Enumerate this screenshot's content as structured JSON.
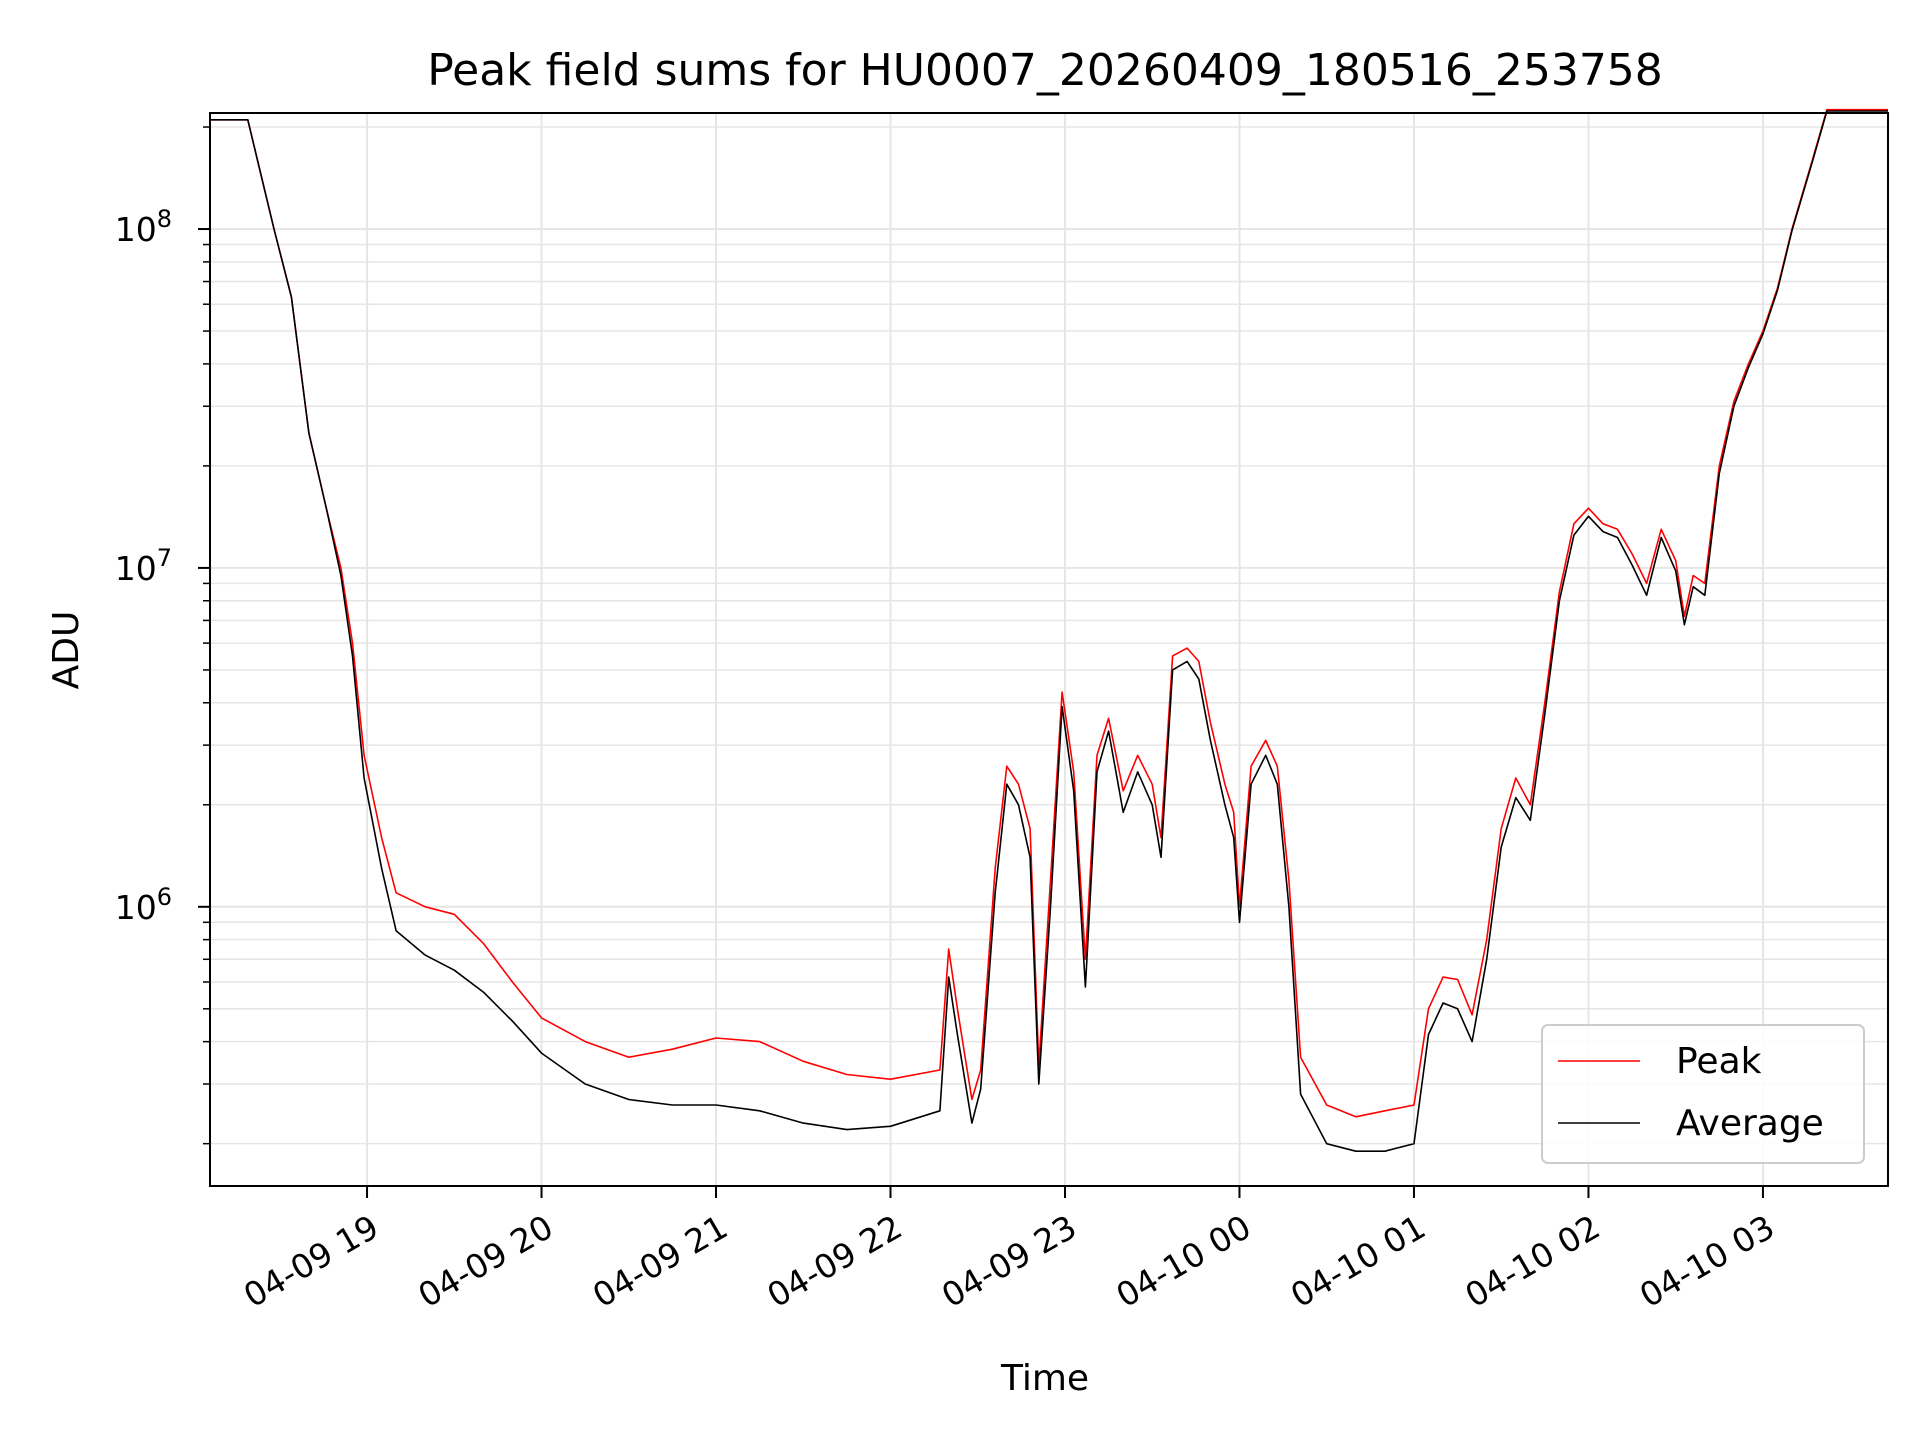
{
  "chart_data": {
    "type": "line",
    "title": "Peak field sums for HU0007_20260409_180516_253758",
    "xlabel": "Time",
    "ylabel": "ADU",
    "x_scale": "time",
    "y_scale": "log",
    "xlim": [
      "2026-04-09 18:06",
      "2026-04-10 03:43"
    ],
    "ylim": [
      150000,
      220000000
    ],
    "grid": true,
    "legend": "lower-right",
    "x_ticks": [
      {
        "time": "2026-04-09 19:00",
        "label": "04-09 19"
      },
      {
        "time": "2026-04-09 20:00",
        "label": "04-09 20"
      },
      {
        "time": "2026-04-09 21:00",
        "label": "04-09 21"
      },
      {
        "time": "2026-04-09 22:00",
        "label": "04-09 22"
      },
      {
        "time": "2026-04-09 23:00",
        "label": "04-09 23"
      },
      {
        "time": "2026-04-10 00:00",
        "label": "04-10 00"
      },
      {
        "time": "2026-04-10 01:00",
        "label": "04-10 01"
      },
      {
        "time": "2026-04-10 02:00",
        "label": "04-10 02"
      },
      {
        "time": "2026-04-10 03:00",
        "label": "04-10 03"
      }
    ],
    "y_ticks": [
      {
        "value": 1000000,
        "base": "10",
        "exp": "6"
      },
      {
        "value": 10000000,
        "base": "10",
        "exp": "7"
      },
      {
        "value": 100000000,
        "base": "10",
        "exp": "8"
      }
    ],
    "series": [
      {
        "name": "Peak",
        "color": "#ff0000",
        "points": [
          [
            "2026-04-09 18:06",
            210000000
          ],
          [
            "2026-04-09 18:19",
            210000000
          ],
          [
            "2026-04-09 18:28",
            100000000
          ],
          [
            "2026-04-09 18:34",
            63000000
          ],
          [
            "2026-04-09 18:40",
            25000000
          ],
          [
            "2026-04-09 18:46",
            15000000
          ],
          [
            "2026-04-09 18:51",
            10000000
          ],
          [
            "2026-04-09 18:55",
            6000000
          ],
          [
            "2026-04-09 18:59",
            2800000
          ],
          [
            "2026-04-09 19:05",
            1600000
          ],
          [
            "2026-04-09 19:10",
            1100000
          ],
          [
            "2026-04-09 19:20",
            1000000
          ],
          [
            "2026-04-09 19:30",
            950000
          ],
          [
            "2026-04-09 19:40",
            780000
          ],
          [
            "2026-04-09 19:50",
            600000
          ],
          [
            "2026-04-09 20:00",
            470000
          ],
          [
            "2026-04-09 20:15",
            400000
          ],
          [
            "2026-04-09 20:30",
            360000
          ],
          [
            "2026-04-09 20:45",
            380000
          ],
          [
            "2026-04-09 21:00",
            410000
          ],
          [
            "2026-04-09 21:15",
            400000
          ],
          [
            "2026-04-09 21:30",
            350000
          ],
          [
            "2026-04-09 21:45",
            320000
          ],
          [
            "2026-04-09 22:00",
            310000
          ],
          [
            "2026-04-09 22:17",
            330000
          ],
          [
            "2026-04-09 22:20",
            750000
          ],
          [
            "2026-04-09 22:23",
            500000
          ],
          [
            "2026-04-09 22:28",
            270000
          ],
          [
            "2026-04-09 22:31",
            330000
          ],
          [
            "2026-04-09 22:36",
            1300000
          ],
          [
            "2026-04-09 22:40",
            2600000
          ],
          [
            "2026-04-09 22:44",
            2300000
          ],
          [
            "2026-04-09 22:48",
            1700000
          ],
          [
            "2026-04-09 22:51",
            340000
          ],
          [
            "2026-04-09 22:55",
            1200000
          ],
          [
            "2026-04-09 22:59",
            4300000
          ],
          [
            "2026-04-09 23:03",
            2500000
          ],
          [
            "2026-04-09 23:07",
            700000
          ],
          [
            "2026-04-09 23:11",
            2800000
          ],
          [
            "2026-04-09 23:15",
            3600000
          ],
          [
            "2026-04-09 23:20",
            2200000
          ],
          [
            "2026-04-09 23:25",
            2800000
          ],
          [
            "2026-04-09 23:30",
            2300000
          ],
          [
            "2026-04-09 23:33",
            1600000
          ],
          [
            "2026-04-09 23:37",
            5500000
          ],
          [
            "2026-04-09 23:42",
            5800000
          ],
          [
            "2026-04-09 23:46",
            5300000
          ],
          [
            "2026-04-09 23:50",
            3500000
          ],
          [
            "2026-04-09 23:55",
            2300000
          ],
          [
            "2026-04-09 23:58",
            1900000
          ],
          [
            "2026-04-10 00:00",
            1000000
          ],
          [
            "2026-04-10 00:04",
            2600000
          ],
          [
            "2026-04-10 00:09",
            3100000
          ],
          [
            "2026-04-10 00:13",
            2600000
          ],
          [
            "2026-04-10 00:17",
            1200000
          ],
          [
            "2026-04-10 00:21",
            360000
          ],
          [
            "2026-04-10 00:30",
            260000
          ],
          [
            "2026-04-10 00:40",
            240000
          ],
          [
            "2026-04-10 00:50",
            250000
          ],
          [
            "2026-04-10 01:00",
            260000
          ],
          [
            "2026-04-10 01:05",
            500000
          ],
          [
            "2026-04-10 01:10",
            620000
          ],
          [
            "2026-04-10 01:15",
            610000
          ],
          [
            "2026-04-10 01:20",
            480000
          ],
          [
            "2026-04-10 01:25",
            800000
          ],
          [
            "2026-04-10 01:30",
            1700000
          ],
          [
            "2026-04-10 01:35",
            2400000
          ],
          [
            "2026-04-10 01:40",
            2000000
          ],
          [
            "2026-04-10 01:45",
            4000000
          ],
          [
            "2026-04-10 01:50",
            8500000
          ],
          [
            "2026-04-10 01:55",
            13500000
          ],
          [
            "2026-04-10 02:00",
            15000000
          ],
          [
            "2026-04-10 02:05",
            13500000
          ],
          [
            "2026-04-10 02:10",
            13000000
          ],
          [
            "2026-04-10 02:15",
            11000000
          ],
          [
            "2026-04-10 02:20",
            9000000
          ],
          [
            "2026-04-10 02:25",
            13000000
          ],
          [
            "2026-04-10 02:30",
            10500000
          ],
          [
            "2026-04-10 02:33",
            7200000
          ],
          [
            "2026-04-10 02:36",
            9500000
          ],
          [
            "2026-04-10 02:40",
            9000000
          ],
          [
            "2026-04-10 02:45",
            20000000
          ],
          [
            "2026-04-10 02:50",
            31000000
          ],
          [
            "2026-04-10 02:55",
            40000000
          ],
          [
            "2026-04-10 03:00",
            50000000
          ],
          [
            "2026-04-10 03:05",
            67000000
          ],
          [
            "2026-04-10 03:10",
            100000000
          ],
          [
            "2026-04-10 03:17",
            160000000
          ],
          [
            "2026-04-10 03:22",
            225000000
          ],
          [
            "2026-04-10 03:43",
            225000000
          ]
        ]
      },
      {
        "name": "Average",
        "color": "#000000",
        "points": [
          [
            "2026-04-09 18:06",
            210000000
          ],
          [
            "2026-04-09 18:19",
            210000000
          ],
          [
            "2026-04-09 18:28",
            100000000
          ],
          [
            "2026-04-09 18:34",
            63000000
          ],
          [
            "2026-04-09 18:40",
            25000000
          ],
          [
            "2026-04-09 18:46",
            15000000
          ],
          [
            "2026-04-09 18:51",
            9500000
          ],
          [
            "2026-04-09 18:55",
            5500000
          ],
          [
            "2026-04-09 18:59",
            2400000
          ],
          [
            "2026-04-09 19:05",
            1300000
          ],
          [
            "2026-04-09 19:10",
            850000
          ],
          [
            "2026-04-09 19:20",
            720000
          ],
          [
            "2026-04-09 19:30",
            650000
          ],
          [
            "2026-04-09 19:40",
            560000
          ],
          [
            "2026-04-09 19:50",
            460000
          ],
          [
            "2026-04-09 20:00",
            370000
          ],
          [
            "2026-04-09 20:15",
            300000
          ],
          [
            "2026-04-09 20:30",
            270000
          ],
          [
            "2026-04-09 20:45",
            260000
          ],
          [
            "2026-04-09 21:00",
            260000
          ],
          [
            "2026-04-09 21:15",
            250000
          ],
          [
            "2026-04-09 21:30",
            230000
          ],
          [
            "2026-04-09 21:45",
            220000
          ],
          [
            "2026-04-09 22:00",
            225000
          ],
          [
            "2026-04-09 22:17",
            250000
          ],
          [
            "2026-04-09 22:20",
            620000
          ],
          [
            "2026-04-09 22:23",
            420000
          ],
          [
            "2026-04-09 22:28",
            230000
          ],
          [
            "2026-04-09 22:31",
            290000
          ],
          [
            "2026-04-09 22:36",
            1100000
          ],
          [
            "2026-04-09 22:40",
            2300000
          ],
          [
            "2026-04-09 22:44",
            2000000
          ],
          [
            "2026-04-09 22:48",
            1400000
          ],
          [
            "2026-04-09 22:51",
            300000
          ],
          [
            "2026-04-09 22:55",
            1000000
          ],
          [
            "2026-04-09 22:59",
            3900000
          ],
          [
            "2026-04-09 23:03",
            2200000
          ],
          [
            "2026-04-09 23:07",
            580000
          ],
          [
            "2026-04-09 23:11",
            2500000
          ],
          [
            "2026-04-09 23:15",
            3300000
          ],
          [
            "2026-04-09 23:20",
            1900000
          ],
          [
            "2026-04-09 23:25",
            2500000
          ],
          [
            "2026-04-09 23:30",
            2000000
          ],
          [
            "2026-04-09 23:33",
            1400000
          ],
          [
            "2026-04-09 23:37",
            5000000
          ],
          [
            "2026-04-09 23:42",
            5300000
          ],
          [
            "2026-04-09 23:46",
            4700000
          ],
          [
            "2026-04-09 23:50",
            3100000
          ],
          [
            "2026-04-09 23:55",
            2000000
          ],
          [
            "2026-04-09 23:58",
            1600000
          ],
          [
            "2026-04-10 00:00",
            900000
          ],
          [
            "2026-04-10 00:04",
            2300000
          ],
          [
            "2026-04-10 00:09",
            2800000
          ],
          [
            "2026-04-10 00:13",
            2300000
          ],
          [
            "2026-04-10 00:17",
            1000000
          ],
          [
            "2026-04-10 00:21",
            280000
          ],
          [
            "2026-04-10 00:30",
            200000
          ],
          [
            "2026-04-10 00:40",
            190000
          ],
          [
            "2026-04-10 00:50",
            190000
          ],
          [
            "2026-04-10 01:00",
            200000
          ],
          [
            "2026-04-10 01:05",
            420000
          ],
          [
            "2026-04-10 01:10",
            520000
          ],
          [
            "2026-04-10 01:15",
            500000
          ],
          [
            "2026-04-10 01:20",
            400000
          ],
          [
            "2026-04-10 01:25",
            700000
          ],
          [
            "2026-04-10 01:30",
            1500000
          ],
          [
            "2026-04-10 01:35",
            2100000
          ],
          [
            "2026-04-10 01:40",
            1800000
          ],
          [
            "2026-04-10 01:45",
            3700000
          ],
          [
            "2026-04-10 01:50",
            8000000
          ],
          [
            "2026-04-10 01:55",
            12500000
          ],
          [
            "2026-04-10 02:00",
            14200000
          ],
          [
            "2026-04-10 02:05",
            12800000
          ],
          [
            "2026-04-10 02:10",
            12300000
          ],
          [
            "2026-04-10 02:15",
            10200000
          ],
          [
            "2026-04-10 02:20",
            8300000
          ],
          [
            "2026-04-10 02:25",
            12300000
          ],
          [
            "2026-04-10 02:30",
            9800000
          ],
          [
            "2026-04-10 02:33",
            6800000
          ],
          [
            "2026-04-10 02:36",
            8800000
          ],
          [
            "2026-04-10 02:40",
            8300000
          ],
          [
            "2026-04-10 02:45",
            19000000
          ],
          [
            "2026-04-10 02:50",
            30000000
          ],
          [
            "2026-04-10 02:55",
            39000000
          ],
          [
            "2026-04-10 03:00",
            49000000
          ],
          [
            "2026-04-10 03:05",
            66000000
          ],
          [
            "2026-04-10 03:10",
            99000000
          ],
          [
            "2026-04-10 03:17",
            158000000
          ],
          [
            "2026-04-10 03:22",
            223000000
          ],
          [
            "2026-04-10 03:43",
            223000000
          ]
        ]
      }
    ]
  }
}
